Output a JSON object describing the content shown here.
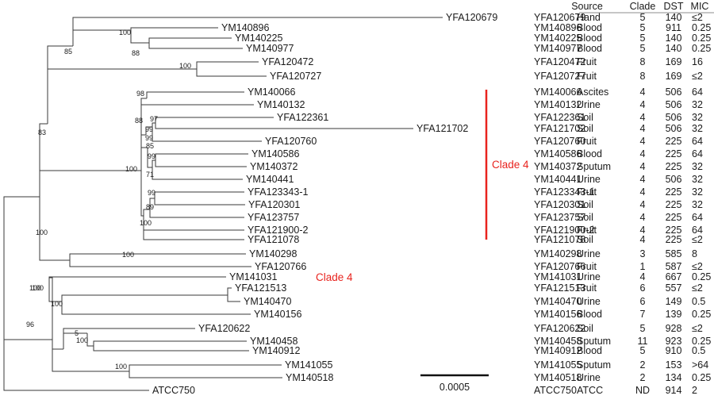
{
  "tree": {
    "taxa": [
      "YFA120679",
      "YM140896",
      "YM140225",
      "YM140977",
      "YFA120472",
      "YFA120727",
      "YM140066",
      "YM140132",
      "YFA122361",
      "YFA121702",
      "YFA120760",
      "YM140586",
      "YM140372",
      "YM140441",
      "YFA123343-1",
      "YFA120301",
      "YFA123757",
      "YFA121900-2",
      "YFA121078",
      "YM140298",
      "YFA120766",
      "YM141031",
      "YFA121513",
      "YM140470",
      "YM140156",
      "YFA120622",
      "YM140458",
      "YM140912",
      "YM141055",
      "YM140518",
      "ATCC750"
    ],
    "bootstrap": {
      "n_hand": "100",
      "n_225_977": "88",
      "n_group1": "85",
      "n_fruit8": "100",
      "n_upper": "83",
      "n_066": "98",
      "n_361_702": "97",
      "n_a3": "99",
      "n_a2": "99",
      "n_a1": "88",
      "n_b": "85",
      "n_c": "99",
      "n_c2": "71",
      "n_d1": "99",
      "n_d2": "89",
      "n_d3": "100",
      "n_clade4": "100",
      "n_298": "100",
      "n_mid": "100",
      "n_513_470": "100",
      "n_e": "100",
      "n_458_912": "100",
      "n_f": "5",
      "n_055_518": "100",
      "n_lower": "100",
      "n_root": "96"
    },
    "clade_bar_label": "Clade 4",
    "clade_inline_label": "Clade 4",
    "scale_label": "0.0005"
  },
  "table": {
    "headers": [
      "Source",
      "Clade",
      "DST",
      "MIC"
    ],
    "rows": [
      {
        "id": "YFA120679",
        "source": "Hand",
        "clade": "5",
        "dst": "140",
        "mic": "≤2",
        "mic_color": "#1a1a1a"
      },
      {
        "id": "YM140896",
        "source": "Blood",
        "clade": "5",
        "dst": "911",
        "mic": "0.25",
        "mic_color": "#1a1a1a"
      },
      {
        "id": "YM140225",
        "source": "Blood",
        "clade": "5",
        "dst": "140",
        "mic": "0.25",
        "mic_color": "#1a1a1a"
      },
      {
        "id": "YM140977",
        "source": "Blood",
        "clade": "5",
        "dst": "140",
        "mic": "0.25",
        "mic_color": "#1a1a1a"
      },
      {
        "id": "YFA120472",
        "source": "Fruit",
        "clade": "8",
        "dst": "169",
        "mic": "16",
        "mic_color": "#e8231e"
      },
      {
        "id": "YFA120727",
        "source": "Fruit",
        "clade": "8",
        "dst": "169",
        "mic": "≤2",
        "mic_color": "#1a1a1a"
      },
      {
        "id": "YM140066",
        "source": "Ascites",
        "clade": "4",
        "dst": "506",
        "mic": "64",
        "mic_color": "#e8231e"
      },
      {
        "id": "YM140132",
        "source": "Urine",
        "clade": "4",
        "dst": "506",
        "mic": "32",
        "mic_color": "#e8231e"
      },
      {
        "id": "YFA122361",
        "source": "Soil",
        "clade": "4",
        "dst": "506",
        "mic": "32",
        "mic_color": "#e8231e"
      },
      {
        "id": "YFA121702",
        "source": "Soil",
        "clade": "4",
        "dst": "506",
        "mic": "32",
        "mic_color": "#e8231e"
      },
      {
        "id": "YFA120760",
        "source": "Fruit",
        "clade": "4",
        "dst": "225",
        "mic": "64",
        "mic_color": "#e8231e"
      },
      {
        "id": "YM140586",
        "source": "Blood",
        "clade": "4",
        "dst": "225",
        "mic": "64",
        "mic_color": "#e8231e"
      },
      {
        "id": "YM140372",
        "source": "Sputum",
        "clade": "4",
        "dst": "225",
        "mic": "32",
        "mic_color": "#e8231e"
      },
      {
        "id": "YM140441",
        "source": "Urine",
        "clade": "4",
        "dst": "506",
        "mic": "32",
        "mic_color": "#e8231e"
      },
      {
        "id": "YFA123343-1",
        "source": "Fruit",
        "clade": "4",
        "dst": "225",
        "mic": "32",
        "mic_color": "#e8231e"
      },
      {
        "id": "YFA120301",
        "source": "Soil",
        "clade": "4",
        "dst": "225",
        "mic": "32",
        "mic_color": "#e8231e"
      },
      {
        "id": "YFA123757",
        "source": "Soil",
        "clade": "4",
        "dst": "225",
        "mic": "64",
        "mic_color": "#e8231e"
      },
      {
        "id": "YFA121900-2",
        "source": "Fruit",
        "clade": "4",
        "dst": "225",
        "mic": "64",
        "mic_color": "#e8231e"
      },
      {
        "id": "YFA121078",
        "source": "Soil",
        "clade": "4",
        "dst": "225",
        "mic": "≤2",
        "mic_color": "#1a1a1a"
      },
      {
        "id": "YM140298",
        "source": "Urine",
        "clade": "3",
        "dst": "585",
        "mic": "8",
        "mic_color": "#e8231e"
      },
      {
        "id": "YFA120766",
        "source": "Fruit",
        "clade": "1",
        "dst": "587",
        "mic": "≤2",
        "mic_color": "#1a1a1a"
      },
      {
        "id": "YM141031",
        "source": "Urine",
        "clade": "4",
        "dst": "667",
        "mic": "0.25",
        "mic_color": "#1a1a1a"
      },
      {
        "id": "YFA121513",
        "source": "Fruit",
        "clade": "6",
        "dst": "557",
        "mic": "≤2",
        "mic_color": "#1a1a1a"
      },
      {
        "id": "YM140470",
        "source": "Urine",
        "clade": "6",
        "dst": "149",
        "mic": "0.5",
        "mic_color": "#1a1a1a"
      },
      {
        "id": "YM140156",
        "source": "Blood",
        "clade": "7",
        "dst": "139",
        "mic": "0.25",
        "mic_color": "#1a1a1a"
      },
      {
        "id": "YFA120622",
        "source": "Soil",
        "clade": "5",
        "dst": "928",
        "mic": "≤2",
        "mic_color": "#1a1a1a"
      },
      {
        "id": "YM140458",
        "source": "Sputum",
        "clade": "11",
        "dst": "923",
        "mic": "0.25",
        "mic_color": "#1a1a1a"
      },
      {
        "id": "YM140912",
        "source": "Blood",
        "clade": "5",
        "dst": "910",
        "mic": "0.5",
        "mic_color": "#1a1a1a"
      },
      {
        "id": "YM141055",
        "source": "Sputum",
        "clade": "2",
        "dst": "153",
        "mic": ">64",
        "mic_color": "#e8231e"
      },
      {
        "id": "YM140518",
        "source": "Urine",
        "clade": "2",
        "dst": "134",
        "mic": "0.25",
        "mic_color": "#1a1a1a"
      },
      {
        "id": "ATCC750",
        "source": "ATCC",
        "clade": "ND",
        "dst": "914",
        "mic": "2",
        "mic_color": "#1a1a1a"
      }
    ]
  },
  "colors": {
    "line": "#3a3a3a",
    "text": "#1a1a1a",
    "accent_red": "#e8231e"
  }
}
